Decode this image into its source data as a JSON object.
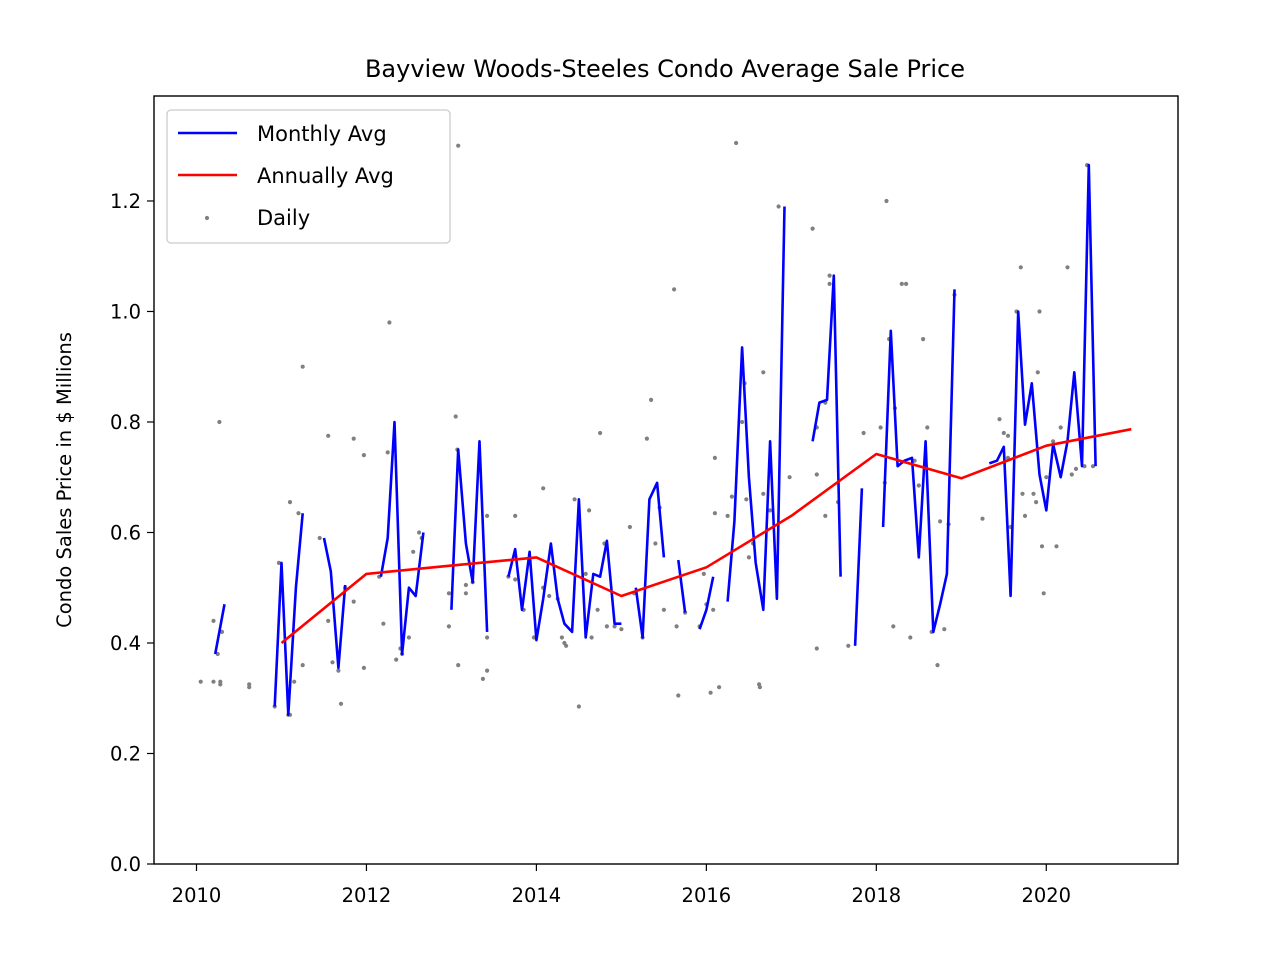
{
  "chart_data": {
    "type": "line",
    "title": "Bayview Woods-Steeles Condo Average Sale Price",
    "xlabel": "",
    "ylabel": "Condo Sales Price in $ Millions",
    "xlim": [
      2009.5,
      2021.55
    ],
    "ylim": [
      0.0,
      1.39
    ],
    "xticks": [
      "2010",
      "2012",
      "2014",
      "2016",
      "2018",
      "2020"
    ],
    "yticks": [
      "0.0",
      "0.2",
      "0.4",
      "0.6",
      "0.8",
      "1.0",
      "1.2"
    ],
    "grid": false,
    "legend": {
      "position": "top-left",
      "entries": [
        {
          "label": "Monthly Avg",
          "color": "#0000ff",
          "kind": "line"
        },
        {
          "label": "Annually Avg",
          "color": "#ff0000",
          "kind": "line"
        },
        {
          "label": "Daily",
          "color": "#808080",
          "kind": "dot"
        }
      ]
    },
    "series": [
      {
        "name": "Annually Avg",
        "color": "#ff0000",
        "kind": "line",
        "points": [
          [
            2011.0,
            0.4
          ],
          [
            2012.0,
            0.525
          ],
          [
            2013.0,
            0.54
          ],
          [
            2014.0,
            0.555
          ],
          [
            2015.0,
            0.485
          ],
          [
            2016.0,
            0.537
          ],
          [
            2017.0,
            0.63
          ],
          [
            2018.0,
            0.742
          ],
          [
            2019.0,
            0.698
          ],
          [
            2020.0,
            0.757
          ],
          [
            2021.0,
            0.787
          ]
        ]
      },
      {
        "name": "Monthly Avg",
        "color": "#0000ff",
        "kind": "line",
        "segments": [
          [
            [
              2010.22,
              0.38
            ],
            [
              2010.33,
              0.47
            ]
          ],
          [
            [
              2010.92,
              0.285
            ],
            [
              2011.0,
              0.545
            ],
            [
              2011.08,
              0.27
            ],
            [
              2011.17,
              0.5
            ],
            [
              2011.25,
              0.635
            ]
          ],
          [
            [
              2011.5,
              0.59
            ],
            [
              2011.58,
              0.53
            ],
            [
              2011.67,
              0.355
            ],
            [
              2011.75,
              0.505
            ]
          ],
          [
            [
              2012.17,
              0.52
            ],
            [
              2012.25,
              0.59
            ],
            [
              2012.33,
              0.8
            ],
            [
              2012.42,
              0.38
            ],
            [
              2012.5,
              0.5
            ],
            [
              2012.58,
              0.485
            ],
            [
              2012.67,
              0.6
            ]
          ],
          [
            [
              2013.0,
              0.46
            ],
            [
              2013.08,
              0.75
            ],
            [
              2013.17,
              0.58
            ],
            [
              2013.25,
              0.51
            ],
            [
              2013.33,
              0.765
            ],
            [
              2013.42,
              0.42
            ]
          ],
          [
            [
              2013.67,
              0.52
            ],
            [
              2013.75,
              0.57
            ],
            [
              2013.83,
              0.46
            ],
            [
              2013.92,
              0.565
            ],
            [
              2014.0,
              0.405
            ],
            [
              2014.08,
              0.48
            ],
            [
              2014.17,
              0.58
            ],
            [
              2014.25,
              0.48
            ],
            [
              2014.33,
              0.435
            ],
            [
              2014.42,
              0.42
            ],
            [
              2014.5,
              0.66
            ],
            [
              2014.58,
              0.41
            ],
            [
              2014.67,
              0.525
            ],
            [
              2014.75,
              0.52
            ],
            [
              2014.83,
              0.585
            ],
            [
              2014.92,
              0.435
            ],
            [
              2015.0,
              0.435
            ]
          ],
          [
            [
              2015.17,
              0.5
            ],
            [
              2015.25,
              0.41
            ],
            [
              2015.33,
              0.66
            ],
            [
              2015.42,
              0.69
            ],
            [
              2015.5,
              0.555
            ]
          ],
          [
            [
              2015.67,
              0.55
            ],
            [
              2015.75,
              0.455
            ]
          ],
          [
            [
              2015.92,
              0.425
            ],
            [
              2016.0,
              0.46
            ],
            [
              2016.08,
              0.52
            ]
          ],
          [
            [
              2016.25,
              0.475
            ],
            [
              2016.33,
              0.62
            ],
            [
              2016.42,
              0.935
            ],
            [
              2016.5,
              0.7
            ],
            [
              2016.58,
              0.545
            ],
            [
              2016.67,
              0.46
            ],
            [
              2016.75,
              0.765
            ],
            [
              2016.83,
              0.48
            ],
            [
              2016.92,
              1.19
            ]
          ],
          [
            [
              2017.25,
              0.765
            ],
            [
              2017.33,
              0.835
            ],
            [
              2017.42,
              0.84
            ],
            [
              2017.5,
              1.065
            ],
            [
              2017.58,
              0.52
            ]
          ],
          [
            [
              2017.75,
              0.395
            ],
            [
              2017.83,
              0.68
            ]
          ],
          [
            [
              2018.08,
              0.61
            ],
            [
              2018.17,
              0.965
            ],
            [
              2018.25,
              0.72
            ],
            [
              2018.33,
              0.73
            ],
            [
              2018.42,
              0.735
            ],
            [
              2018.5,
              0.555
            ],
            [
              2018.58,
              0.765
            ],
            [
              2018.67,
              0.42
            ],
            [
              2018.75,
              0.47
            ],
            [
              2018.83,
              0.525
            ],
            [
              2018.92,
              1.04
            ]
          ],
          [
            [
              2019.33,
              0.725
            ],
            [
              2019.42,
              0.73
            ],
            [
              2019.5,
              0.755
            ],
            [
              2019.58,
              0.485
            ],
            [
              2019.67,
              1.0
            ],
            [
              2019.75,
              0.795
            ],
            [
              2019.83,
              0.87
            ],
            [
              2019.92,
              0.705
            ],
            [
              2020.0,
              0.64
            ],
            [
              2020.08,
              0.76
            ],
            [
              2020.17,
              0.7
            ],
            [
              2020.25,
              0.765
            ],
            [
              2020.33,
              0.89
            ],
            [
              2020.42,
              0.72
            ],
            [
              2020.5,
              1.265
            ],
            [
              2020.58,
              0.72
            ]
          ]
        ]
      },
      {
        "name": "Daily",
        "color": "#808080",
        "kind": "scatter",
        "points": [
          [
            2010.05,
            0.33
          ],
          [
            2010.2,
            0.33
          ],
          [
            2010.2,
            0.44
          ],
          [
            2010.25,
            0.38
          ],
          [
            2010.28,
            0.33
          ],
          [
            2010.28,
            0.325
          ],
          [
            2010.27,
            0.8
          ],
          [
            2010.3,
            0.42
          ],
          [
            2010.62,
            0.325
          ],
          [
            2010.62,
            0.32
          ],
          [
            2010.92,
            0.285
          ],
          [
            2010.97,
            0.545
          ],
          [
            2011.08,
            0.27
          ],
          [
            2011.1,
            0.655
          ],
          [
            2011.1,
            0.27
          ],
          [
            2011.15,
            0.33
          ],
          [
            2011.2,
            0.635
          ],
          [
            2011.25,
            0.9
          ],
          [
            2011.25,
            0.36
          ],
          [
            2011.45,
            0.59
          ],
          [
            2011.55,
            0.775
          ],
          [
            2011.55,
            0.44
          ],
          [
            2011.6,
            0.365
          ],
          [
            2011.67,
            0.35
          ],
          [
            2011.7,
            0.29
          ],
          [
            2011.75,
            0.5
          ],
          [
            2011.85,
            0.77
          ],
          [
            2011.85,
            0.475
          ],
          [
            2011.97,
            0.355
          ],
          [
            2011.97,
            0.74
          ],
          [
            2012.15,
            0.52
          ],
          [
            2012.2,
            0.435
          ],
          [
            2012.25,
            0.745
          ],
          [
            2012.27,
            0.98
          ],
          [
            2012.35,
            0.37
          ],
          [
            2012.4,
            0.39
          ],
          [
            2012.42,
            0.38
          ],
          [
            2012.5,
            0.41
          ],
          [
            2012.55,
            0.565
          ],
          [
            2012.62,
            0.6
          ],
          [
            2012.65,
            0.59
          ],
          [
            2012.97,
            0.49
          ],
          [
            2012.97,
            0.43
          ],
          [
            2013.05,
            0.81
          ],
          [
            2013.07,
            0.75
          ],
          [
            2013.08,
            0.36
          ],
          [
            2013.17,
            0.505
          ],
          [
            2013.17,
            0.49
          ],
          [
            2013.25,
            0.51
          ],
          [
            2013.37,
            0.335
          ],
          [
            2013.42,
            0.41
          ],
          [
            2013.42,
            0.35
          ],
          [
            2013.08,
            1.3
          ],
          [
            2013.42,
            0.63
          ],
          [
            2013.67,
            0.52
          ],
          [
            2013.75,
            0.63
          ],
          [
            2013.75,
            0.515
          ],
          [
            2013.85,
            0.46
          ],
          [
            2013.92,
            0.55
          ],
          [
            2013.97,
            0.41
          ],
          [
            2014.08,
            0.68
          ],
          [
            2014.08,
            0.5
          ],
          [
            2014.15,
            0.485
          ],
          [
            2014.25,
            0.48
          ],
          [
            2014.3,
            0.41
          ],
          [
            2014.33,
            0.4
          ],
          [
            2014.35,
            0.395
          ],
          [
            2014.45,
            0.66
          ],
          [
            2014.5,
            0.285
          ],
          [
            2014.58,
            0.525
          ],
          [
            2014.62,
            0.64
          ],
          [
            2014.65,
            0.41
          ],
          [
            2014.72,
            0.46
          ],
          [
            2014.75,
            0.78
          ],
          [
            2014.8,
            0.58
          ],
          [
            2014.83,
            0.43
          ],
          [
            2014.92,
            0.43
          ],
          [
            2015.0,
            0.425
          ],
          [
            2015.1,
            0.61
          ],
          [
            2015.15,
            0.49
          ],
          [
            2015.25,
            0.41
          ],
          [
            2015.3,
            0.77
          ],
          [
            2015.35,
            0.84
          ],
          [
            2015.4,
            0.58
          ],
          [
            2015.45,
            0.645
          ],
          [
            2015.5,
            0.46
          ],
          [
            2015.62,
            1.04
          ],
          [
            2015.65,
            0.43
          ],
          [
            2015.67,
            0.305
          ],
          [
            2015.75,
            0.455
          ],
          [
            2015.92,
            0.43
          ],
          [
            2015.97,
            0.525
          ],
          [
            2016.0,
            0.47
          ],
          [
            2016.05,
            0.31
          ],
          [
            2016.08,
            0.46
          ],
          [
            2016.1,
            0.635
          ],
          [
            2016.1,
            0.735
          ],
          [
            2016.15,
            0.32
          ],
          [
            2016.25,
            0.63
          ],
          [
            2016.3,
            0.665
          ],
          [
            2016.35,
            1.305
          ],
          [
            2016.42,
            0.8
          ],
          [
            2016.45,
            0.87
          ],
          [
            2016.47,
            0.66
          ],
          [
            2016.5,
            0.555
          ],
          [
            2016.55,
            0.58
          ],
          [
            2016.62,
            0.325
          ],
          [
            2016.63,
            0.32
          ],
          [
            2016.67,
            0.89
          ],
          [
            2016.67,
            0.67
          ],
          [
            2016.75,
            0.64
          ],
          [
            2016.85,
            1.19
          ],
          [
            2016.98,
            0.7
          ],
          [
            2017.25,
            1.15
          ],
          [
            2017.3,
            0.705
          ],
          [
            2017.3,
            0.39
          ],
          [
            2017.3,
            0.79
          ],
          [
            2017.4,
            0.835
          ],
          [
            2017.4,
            0.63
          ],
          [
            2017.45,
            1.065
          ],
          [
            2017.45,
            1.05
          ],
          [
            2017.55,
            0.655
          ],
          [
            2017.67,
            0.395
          ],
          [
            2017.85,
            0.78
          ],
          [
            2018.05,
            0.79
          ],
          [
            2018.1,
            0.69
          ],
          [
            2018.12,
            1.2
          ],
          [
            2018.15,
            0.95
          ],
          [
            2018.2,
            0.43
          ],
          [
            2018.22,
            0.825
          ],
          [
            2018.3,
            1.05
          ],
          [
            2018.35,
            1.05
          ],
          [
            2018.4,
            0.41
          ],
          [
            2018.45,
            0.73
          ],
          [
            2018.5,
            0.685
          ],
          [
            2018.55,
            0.95
          ],
          [
            2018.6,
            0.79
          ],
          [
            2018.65,
            0.42
          ],
          [
            2018.72,
            0.36
          ],
          [
            2018.75,
            0.62
          ],
          [
            2018.8,
            0.425
          ],
          [
            2018.85,
            0.615
          ],
          [
            2018.92,
            1.03
          ],
          [
            2019.25,
            0.625
          ],
          [
            2019.45,
            0.805
          ],
          [
            2019.5,
            0.78
          ],
          [
            2019.55,
            0.775
          ],
          [
            2019.55,
            0.735
          ],
          [
            2019.58,
            0.61
          ],
          [
            2019.65,
            1.0
          ],
          [
            2019.7,
            1.08
          ],
          [
            2019.72,
            0.67
          ],
          [
            2019.75,
            0.63
          ],
          [
            2019.85,
            0.67
          ],
          [
            2019.88,
            0.655
          ],
          [
            2019.9,
            0.89
          ],
          [
            2019.92,
            1.0
          ],
          [
            2019.95,
            0.575
          ],
          [
            2019.97,
            0.49
          ],
          [
            2020.0,
            0.7
          ],
          [
            2020.08,
            0.765
          ],
          [
            2020.12,
            0.575
          ],
          [
            2020.17,
            0.79
          ],
          [
            2020.25,
            1.08
          ],
          [
            2020.3,
            0.705
          ],
          [
            2020.35,
            0.715
          ],
          [
            2020.45,
            0.72
          ],
          [
            2020.48,
            1.265
          ],
          [
            2020.55,
            0.72
          ]
        ]
      }
    ]
  }
}
